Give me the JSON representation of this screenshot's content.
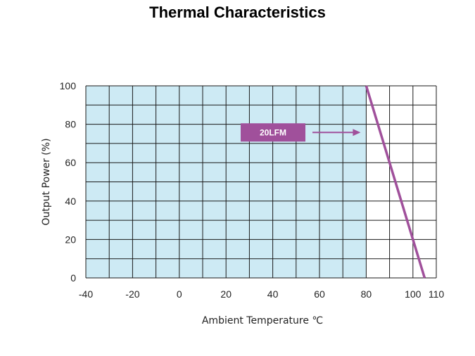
{
  "page": {
    "title": "Thermal Characteristics"
  },
  "colors": {
    "safe_area_fill": "#cdeaf4",
    "grid_line": "#1a1a1a",
    "derating_line": "#a0509b",
    "annotation_box": "#a0509b",
    "annotation_text": "#ffffff"
  },
  "chart_data": {
    "type": "line",
    "title": "",
    "xlabel": "Ambient Temperature ℃",
    "ylabel": "Output Power (%)",
    "xlim": [
      -40,
      110
    ],
    "ylim": [
      0,
      100
    ],
    "x_ticks": [
      -40,
      -20,
      0,
      20,
      40,
      60,
      80,
      100,
      110
    ],
    "y_ticks": [
      0,
      20,
      40,
      60,
      80,
      100
    ],
    "x_gridlines": [
      -40,
      -30,
      -20,
      -10,
      0,
      10,
      20,
      30,
      40,
      50,
      60,
      70,
      80,
      90,
      100,
      110
    ],
    "y_gridlines": [
      0,
      10,
      20,
      30,
      40,
      50,
      60,
      70,
      80,
      90,
      100
    ],
    "grid": true,
    "shaded_region": {
      "x": [
        -40,
        80
      ],
      "y": [
        0,
        100
      ]
    },
    "series": [
      {
        "x": [
          80,
          105
        ],
        "y": [
          100,
          0
        ]
      }
    ],
    "annotation": {
      "text": "20LFM",
      "points_to": {
        "x": 80,
        "y": 75
      }
    }
  }
}
